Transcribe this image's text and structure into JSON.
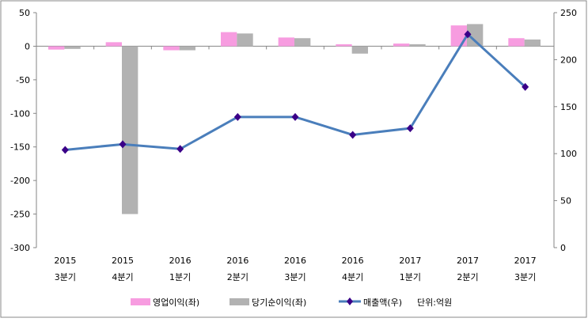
{
  "chart_data": {
    "type": "bar+line",
    "categories": [
      [
        "2015",
        "3분기"
      ],
      [
        "2015",
        "4분기"
      ],
      [
        "2016",
        "1분기"
      ],
      [
        "2016",
        "2분기"
      ],
      [
        "2016",
        "3분기"
      ],
      [
        "2016",
        "4분기"
      ],
      [
        "2017",
        "1분기"
      ],
      [
        "2017",
        "2분기"
      ],
      [
        "2017",
        "3분기"
      ]
    ],
    "y_left": {
      "range": [
        -300,
        50
      ],
      "ticks": [
        50,
        0,
        -50,
        -100,
        -150,
        -200,
        -250,
        -300
      ]
    },
    "y_right": {
      "range": [
        0,
        250
      ],
      "ticks": [
        250,
        200,
        150,
        100,
        50,
        0
      ]
    },
    "series": [
      {
        "name": "영업이익(좌)",
        "type": "bar",
        "axis": "left",
        "color": "#F79CE0",
        "values": [
          -5,
          6,
          -6,
          21,
          13,
          3,
          4,
          31,
          12
        ]
      },
      {
        "name": "당기순이익(좌)",
        "type": "bar",
        "axis": "left",
        "color": "#B2B2B2",
        "values": [
          -4,
          -250,
          -6,
          19,
          12,
          -11,
          3,
          33,
          10
        ]
      },
      {
        "name": "매출액(우)",
        "type": "line",
        "axis": "right",
        "color": "#4A7EBB",
        "marker_color": "#3A0088",
        "values": [
          104,
          110,
          105,
          139,
          139,
          120,
          127,
          227,
          171
        ]
      }
    ],
    "unit_note": "단위:억원",
    "legend": "bottom",
    "grid": false
  }
}
